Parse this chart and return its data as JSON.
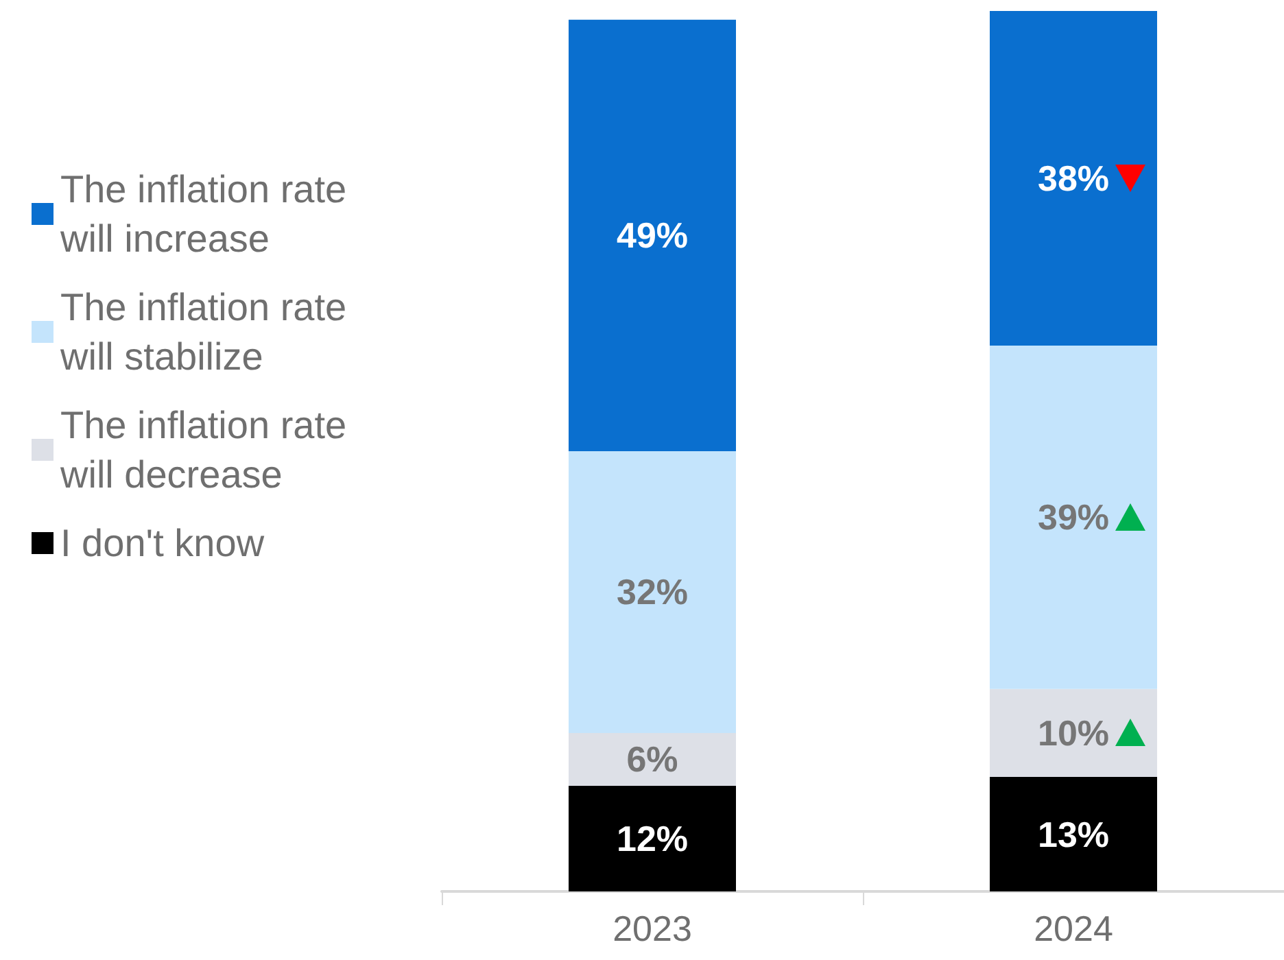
{
  "chart_data": {
    "type": "bar",
    "stacked": true,
    "categories": [
      "2023",
      "2024"
    ],
    "series": [
      {
        "name": "I don't know",
        "color": "#000000",
        "values": [
          12,
          13
        ],
        "value_labels": [
          "12%",
          "13%"
        ]
      },
      {
        "name": "The inflation rate will decrease",
        "color": "#dde0e7",
        "values": [
          6,
          10
        ],
        "value_labels": [
          "6%",
          "10%"
        ]
      },
      {
        "name": "The inflation rate will stabilize",
        "color": "#c4e4fc",
        "values": [
          32,
          39
        ],
        "value_labels": [
          "32%",
          "39%"
        ]
      },
      {
        "name": "The inflation rate will increase",
        "color": "#0a6fcf",
        "values": [
          49,
          38
        ],
        "value_labels": [
          "49%",
          "38%"
        ]
      }
    ],
    "legend": "left",
    "grid": false
  }
}
